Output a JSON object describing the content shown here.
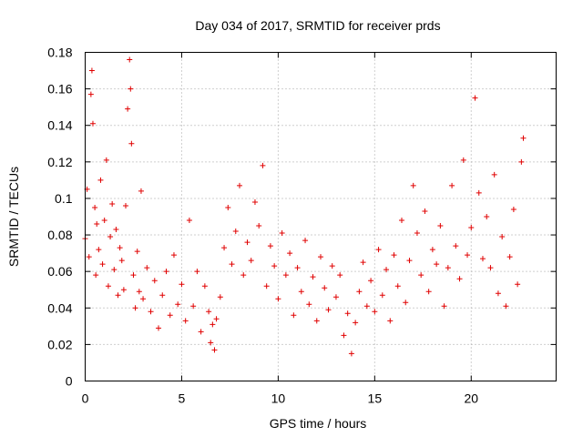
{
  "chart_data": {
    "type": "scatter",
    "title": "Day 034 of 2017, SRMTID for receiver prds",
    "xlabel": "GPS time / hours",
    "ylabel": "SRMTID / TECUs",
    "xlim": [
      0,
      24.4
    ],
    "ylim": [
      0,
      0.18
    ],
    "xticks": [
      0,
      5,
      10,
      15,
      20
    ],
    "xtick_labels": [
      "0",
      "5",
      "10",
      "15",
      "20"
    ],
    "yticks": [
      0,
      0.02,
      0.04,
      0.06,
      0.08,
      0.1,
      0.12,
      0.14,
      0.16,
      0.18
    ],
    "ytick_labels": [
      "0",
      "0.02",
      "0.04",
      "0.06",
      "0.08",
      "0.1",
      "0.12",
      "0.14",
      "0.16",
      "0.18"
    ],
    "grid": true,
    "marker": "plus",
    "color": "#e00000",
    "series": [
      {
        "name": "SRMTID",
        "x": [
          0.0,
          0.1,
          0.2,
          0.3,
          0.35,
          0.4,
          0.5,
          0.55,
          0.6,
          0.7,
          0.8,
          0.9,
          1.0,
          1.1,
          1.2,
          1.3,
          1.4,
          1.5,
          1.6,
          1.7,
          1.8,
          1.9,
          2.0,
          2.1,
          2.2,
          2.3,
          2.35,
          2.4,
          2.5,
          2.6,
          2.7,
          2.8,
          2.9,
          3.0,
          3.2,
          3.4,
          3.6,
          3.8,
          4.0,
          4.2,
          4.4,
          4.6,
          4.8,
          5.0,
          5.2,
          5.4,
          5.6,
          5.8,
          6.0,
          6.2,
          6.4,
          6.5,
          6.6,
          6.7,
          6.8,
          7.0,
          7.2,
          7.4,
          7.6,
          7.8,
          8.0,
          8.2,
          8.4,
          8.6,
          8.8,
          9.0,
          9.2,
          9.4,
          9.6,
          9.8,
          10.0,
          10.2,
          10.4,
          10.6,
          10.8,
          11.0,
          11.2,
          11.4,
          11.6,
          11.8,
          12.0,
          12.2,
          12.4,
          12.6,
          12.8,
          13.0,
          13.2,
          13.4,
          13.6,
          13.8,
          14.0,
          14.2,
          14.4,
          14.6,
          14.8,
          15.0,
          15.2,
          15.4,
          15.6,
          15.8,
          16.0,
          16.2,
          16.4,
          16.6,
          16.8,
          17.0,
          17.2,
          17.4,
          17.6,
          17.8,
          18.0,
          18.2,
          18.4,
          18.6,
          18.8,
          19.0,
          19.2,
          19.4,
          19.6,
          19.8,
          20.0,
          20.2,
          20.4,
          20.6,
          20.8,
          21.0,
          21.2,
          21.4,
          21.6,
          21.8,
          22.0,
          22.2,
          22.4,
          22.6,
          22.7
        ],
        "y": [
          0.078,
          0.105,
          0.068,
          0.157,
          0.17,
          0.141,
          0.095,
          0.058,
          0.086,
          0.072,
          0.11,
          0.064,
          0.088,
          0.121,
          0.052,
          0.079,
          0.097,
          0.061,
          0.083,
          0.047,
          0.073,
          0.066,
          0.05,
          0.096,
          0.149,
          0.176,
          0.16,
          0.13,
          0.058,
          0.04,
          0.071,
          0.049,
          0.104,
          0.045,
          0.062,
          0.038,
          0.055,
          0.029,
          0.047,
          0.06,
          0.036,
          0.069,
          0.042,
          0.053,
          0.033,
          0.088,
          0.041,
          0.06,
          0.027,
          0.052,
          0.038,
          0.021,
          0.031,
          0.017,
          0.034,
          0.046,
          0.073,
          0.095,
          0.064,
          0.082,
          0.107,
          0.058,
          0.076,
          0.066,
          0.098,
          0.085,
          0.118,
          0.052,
          0.074,
          0.063,
          0.045,
          0.081,
          0.058,
          0.07,
          0.036,
          0.062,
          0.049,
          0.077,
          0.042,
          0.057,
          0.033,
          0.068,
          0.051,
          0.039,
          0.063,
          0.046,
          0.058,
          0.025,
          0.037,
          0.015,
          0.032,
          0.049,
          0.065,
          0.041,
          0.055,
          0.038,
          0.072,
          0.047,
          0.061,
          0.033,
          0.069,
          0.052,
          0.088,
          0.043,
          0.066,
          0.107,
          0.081,
          0.058,
          0.093,
          0.049,
          0.072,
          0.064,
          0.085,
          0.041,
          0.062,
          0.107,
          0.074,
          0.056,
          0.121,
          0.069,
          0.084,
          0.155,
          0.103,
          0.067,
          0.09,
          0.062,
          0.113,
          0.048,
          0.079,
          0.041,
          0.068,
          0.094,
          0.053,
          0.12,
          0.133
        ]
      }
    ]
  }
}
